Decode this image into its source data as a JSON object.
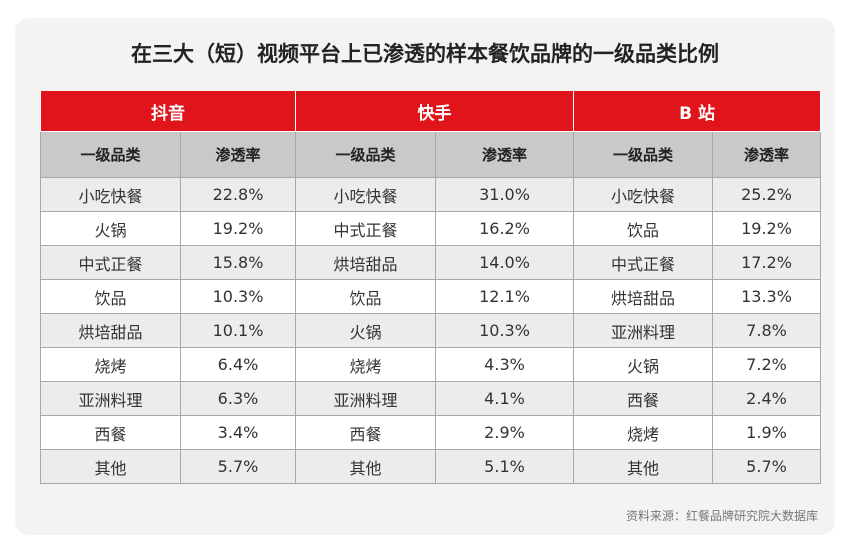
{
  "title": "在三大（短）视频平台上已渗透的样本餐饮品牌的一级品类比例",
  "table": {
    "groups": [
      "抖音",
      "快手",
      "B 站"
    ],
    "columns": [
      "一级品类",
      "渗透率",
      "一级品类",
      "渗透率",
      "一级品类",
      "渗透率"
    ],
    "rows": [
      [
        "小吃快餐",
        "22.8%",
        "小吃快餐",
        "31.0%",
        "小吃快餐",
        "25.2%"
      ],
      [
        "火锅",
        "19.2%",
        "中式正餐",
        "16.2%",
        "饮品",
        "19.2%"
      ],
      [
        "中式正餐",
        "15.8%",
        "烘培甜品",
        "14.0%",
        "中式正餐",
        "17.2%"
      ],
      [
        "饮品",
        "10.3%",
        "饮品",
        "12.1%",
        "烘培甜品",
        "13.3%"
      ],
      [
        "烘培甜品",
        "10.1%",
        "火锅",
        "10.3%",
        "亚洲料理",
        "7.8%"
      ],
      [
        "烧烤",
        "6.4%",
        "烧烤",
        "4.3%",
        "火锅",
        "7.2%"
      ],
      [
        "亚洲料理",
        "6.3%",
        "亚洲料理",
        "4.1%",
        "西餐",
        "2.4%"
      ],
      [
        "西餐",
        "3.4%",
        "西餐",
        "2.9%",
        "烧烤",
        "1.9%"
      ],
      [
        "其他",
        "5.7%",
        "其他",
        "5.1%",
        "其他",
        "5.7%"
      ]
    ]
  },
  "source": "资料来源：红餐品牌研究院大数据库"
}
